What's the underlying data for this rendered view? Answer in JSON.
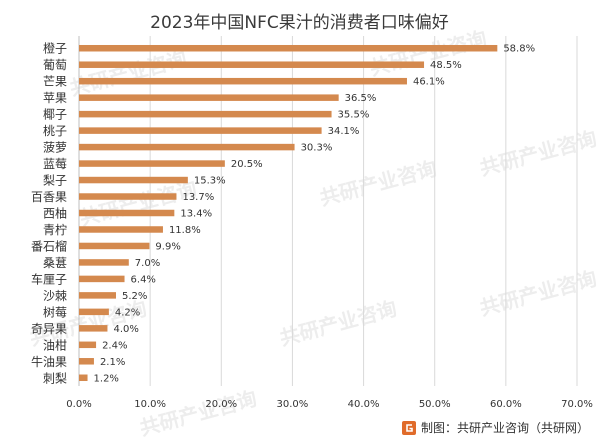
{
  "title": "2023年中国NFC果汁的消费者口味偏好",
  "source": "制图：共研产业咨询（共研网）",
  "watermark": "共研产业咨询",
  "colors": {
    "bar": "#D4894E",
    "grid": "#d9d9d9",
    "axis": "#bfbfbf",
    "text": "#333333",
    "logo": "#E06B2A"
  },
  "chart_data": {
    "type": "bar",
    "orientation": "horizontal",
    "categories": [
      "橙子",
      "葡萄",
      "芒果",
      "苹果",
      "椰子",
      "桃子",
      "菠萝",
      "蓝莓",
      "梨子",
      "百香果",
      "西柚",
      "青柠",
      "番石榴",
      "桑葚",
      "车厘子",
      "沙棘",
      "树莓",
      "奇异果",
      "油柑",
      "牛油果",
      "刺梨"
    ],
    "values": [
      58.8,
      48.5,
      46.1,
      36.5,
      35.5,
      34.1,
      30.3,
      20.5,
      15.3,
      13.7,
      13.4,
      11.8,
      9.9,
      7.0,
      6.4,
      5.2,
      4.2,
      4.0,
      2.4,
      2.1,
      1.2
    ],
    "value_labels": [
      "58.8%",
      "48.5%",
      "46.1%",
      "36.5%",
      "35.5%",
      "34.1%",
      "30.3%",
      "20.5%",
      "15.3%",
      "13.7%",
      "13.4%",
      "11.8%",
      "9.9%",
      "7.0%",
      "6.4%",
      "5.2%",
      "4.2%",
      "4.0%",
      "2.4%",
      "2.1%",
      "1.2%"
    ],
    "xlim": [
      0,
      70
    ],
    "xticks": [
      0,
      10,
      20,
      30,
      40,
      50,
      60,
      70
    ],
    "xtick_labels": [
      "0.0%",
      "10.0%",
      "20.0%",
      "30.0%",
      "40.0%",
      "50.0%",
      "60.0%",
      "70.0%"
    ],
    "grid": true,
    "legend": "none",
    "title": "2023年中国NFC果汁的消费者口味偏好",
    "xlabel": "",
    "ylabel": ""
  }
}
